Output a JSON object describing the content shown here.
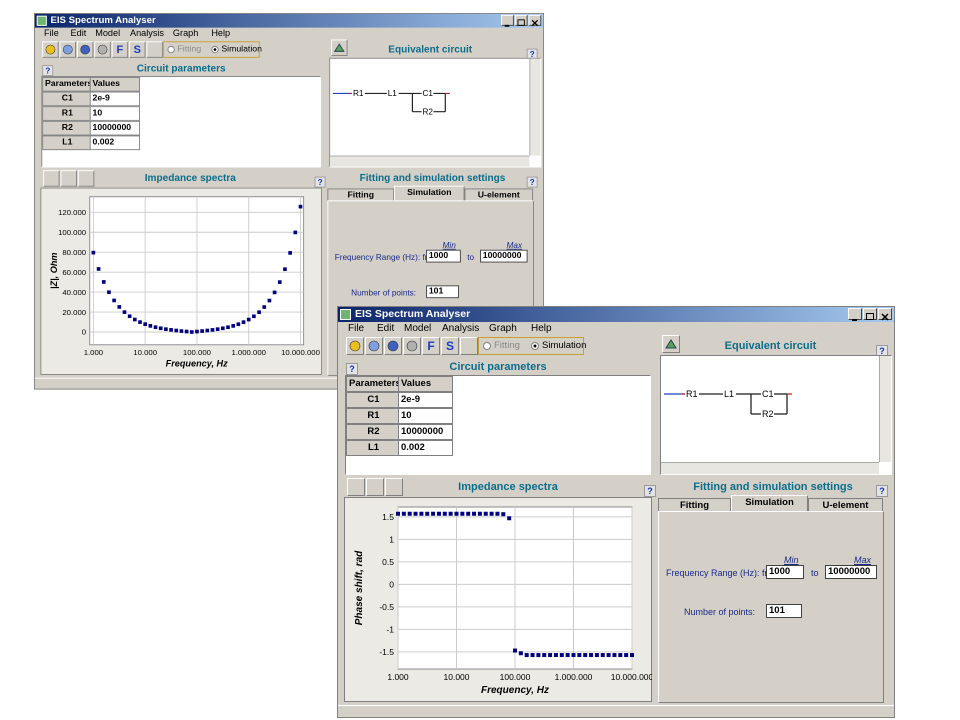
{
  "windows": [
    {
      "title": "EIS Spectrum Analyser",
      "menu": [
        "File",
        "Edit",
        "Model",
        "Analysis",
        "Graph",
        "Help"
      ],
      "toolbar": {
        "letters": [
          "F",
          "S"
        ],
        "modes": [
          "Fitting",
          "Simulation"
        ]
      },
      "help_icon": "?",
      "circuit_parameters": {
        "title": "Circuit parameters",
        "header": [
          "Parameters",
          "Values"
        ],
        "rows": [
          [
            "C1",
            "2e-9"
          ],
          [
            "R1",
            "10"
          ],
          [
            "R2",
            "10000000"
          ],
          [
            "L1",
            "0.002"
          ]
        ]
      },
      "equivalent_circuit": {
        "title": "Equivalent circuit",
        "labels": [
          "R1",
          "L1",
          "C1",
          "R2"
        ]
      },
      "impedance_spectra": {
        "title": "Impedance spectra",
        "chart_data": {
          "type": "scatter",
          "xlabel": "Frequency, Hz",
          "ylabel": "|Z|, Ohm",
          "color": "#000080",
          "xscale": "log",
          "grid": true,
          "xlim": [
            850,
            11500000
          ],
          "ylim": [
            -12800,
            135600
          ],
          "xticks": [
            {
              "value": 1000,
              "label": "1.000"
            },
            {
              "value": 10000,
              "label": "10.000"
            },
            {
              "value": 100000,
              "label": "100.000"
            },
            {
              "value": 1000000,
              "label": "1.000.000"
            },
            {
              "value": 10000000,
              "label": "10.000.000"
            }
          ],
          "yticks": [
            0,
            {
              "value": 20000,
              "label": "20.000"
            },
            {
              "value": 40000,
              "label": "40.000"
            },
            {
              "value": 60000,
              "label": "60.000"
            },
            {
              "value": 80000,
              "label": "80.000"
            },
            {
              "value": 100000,
              "label": "100.000"
            },
            {
              "value": 120000,
              "label": "120.000"
            }
          ],
          "x": [
            1000,
            1259,
            1585,
            1995,
            2512,
            3162,
            3981,
            5012,
            6310,
            7943,
            10000,
            12589,
            15849,
            19953,
            25119,
            31623,
            39811,
            50119,
            63096,
            79433,
            100000,
            125893,
            158489,
            199526,
            251189,
            316228,
            398107,
            501187,
            630957,
            794328,
            1000000,
            1258925,
            1584893,
            1995262,
            2511886,
            3162278,
            3981072,
            5011872,
            6309573,
            7943282,
            10000000
          ],
          "values": [
            79564,
            63196,
            50187,
            39862,
            31648,
            25125,
            19940,
            15814,
            12533,
            9918,
            7832,
            6163,
            4822,
            3738,
            2852,
            2120,
            1499,
            958,
            468,
            11,
            461,
            950,
            1490,
            2108,
            2840,
            3722,
            4803,
            6139,
            7803,
            9881,
            12486,
            15757,
            19866,
            25032,
            31533,
            39713,
            50007,
            62965,
            79276,
            99803,
            125656
          ]
        }
      },
      "settings": {
        "title": "Fitting and simulation settings",
        "tabs": [
          "Fitting",
          "Simulation",
          "U-element"
        ],
        "min_label": "Min",
        "max_label": "Max",
        "frequency_label": "Frequency Range (Hz):  from",
        "from_value": "1000",
        "to_label": "to",
        "to_value": "10000000",
        "points_label": "Number of points:",
        "points_value": "101"
      }
    },
    {
      "title": "EIS Spectrum Analyser",
      "menu": [
        "File",
        "Edit",
        "Model",
        "Analysis",
        "Graph",
        "Help"
      ],
      "toolbar": {
        "letters": [
          "F",
          "S"
        ],
        "modes": [
          "Fitting",
          "Simulation"
        ]
      },
      "help_icon": "?",
      "circuit_parameters": {
        "title": "Circuit parameters",
        "header": [
          "Parameters",
          "Values"
        ],
        "rows": [
          [
            "C1",
            "2e-9"
          ],
          [
            "R1",
            "10"
          ],
          [
            "R2",
            "10000000"
          ],
          [
            "L1",
            "0.002"
          ]
        ]
      },
      "equivalent_circuit": {
        "title": "Equivalent circuit",
        "labels": [
          "R1",
          "L1",
          "C1",
          "R2"
        ]
      },
      "impedance_spectra": {
        "title": "Impedance spectra",
        "chart_data": {
          "type": "scatter",
          "xlabel": "Frequency, Hz",
          "ylabel": "Phase shift, rad",
          "color": "#000080",
          "xscale": "log",
          "grid": true,
          "xlim": [
            1000,
            10000000
          ],
          "ylim": [
            -1.88,
            1.72
          ],
          "xticks": [
            {
              "value": 1000,
              "label": "1.000"
            },
            {
              "value": 10000,
              "label": "10.000"
            },
            {
              "value": 100000,
              "label": "100.000"
            },
            {
              "value": 1000000,
              "label": "1.000.000"
            },
            {
              "value": 10000000,
              "label": "10.000.000"
            }
          ],
          "yticks": [
            1.5,
            1,
            0.5,
            0,
            -0.5,
            -1,
            -1.5
          ],
          "x": [
            1000,
            1259,
            1585,
            1995,
            2512,
            3162,
            3981,
            5012,
            6310,
            7943,
            10000,
            12589,
            15849,
            19953,
            25119,
            31623,
            39811,
            50119,
            63096,
            79433,
            100000,
            125893,
            158489,
            199526,
            251189,
            316228,
            398107,
            501187,
            630957,
            794328,
            1000000,
            1258925,
            1584893,
            1995262,
            2511886,
            3162278,
            3981072,
            5011872,
            6309573,
            7943282,
            10000000
          ],
          "values": [
            1.57,
            1.57,
            1.57,
            1.57,
            1.57,
            1.57,
            1.57,
            1.57,
            1.57,
            1.57,
            1.57,
            1.57,
            1.57,
            1.57,
            1.57,
            1.57,
            1.57,
            1.57,
            1.56,
            1.47,
            -1.47,
            -1.53,
            -1.57,
            -1.57,
            -1.57,
            -1.57,
            -1.57,
            -1.57,
            -1.57,
            -1.57,
            -1.57,
            -1.57,
            -1.57,
            -1.57,
            -1.57,
            -1.57,
            -1.57,
            -1.57,
            -1.57,
            -1.57,
            -1.57
          ]
        }
      },
      "settings": {
        "title": "Fitting and simulation settings",
        "tabs": [
          "Fitting",
          "Simulation",
          "U-element"
        ],
        "min_label": "Min",
        "max_label": "Max",
        "frequency_label": "Frequency Range (Hz):  from",
        "from_value": "1000",
        "to_label": "to",
        "to_value": "10000000",
        "points_label": "Number of points:",
        "points_value": "101"
      }
    }
  ]
}
